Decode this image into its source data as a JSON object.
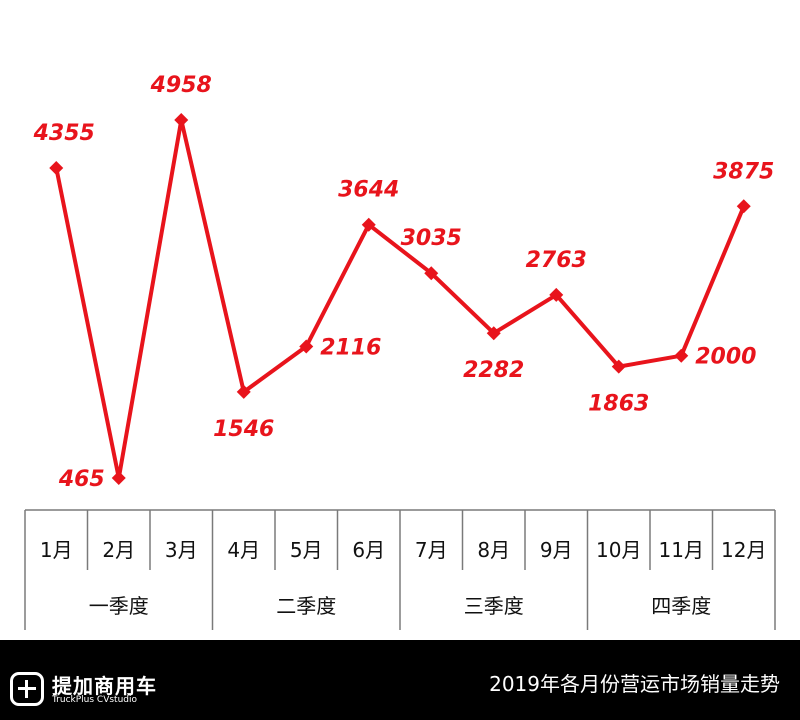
{
  "chart_data": {
    "type": "line",
    "categories": [
      "1月",
      "2月",
      "3月",
      "4月",
      "5月",
      "6月",
      "7月",
      "8月",
      "9月",
      "10月",
      "11月",
      "12月"
    ],
    "values": [
      4355,
      465,
      4958,
      1546,
      2116,
      3644,
      3035,
      2282,
      2763,
      1863,
      2000,
      3875
    ],
    "quarters": [
      "一季度",
      "二季度",
      "三季度",
      "四季度"
    ],
    "label_positions": [
      "above",
      "left",
      "above",
      "below",
      "right",
      "above",
      "above",
      "below",
      "above",
      "below",
      "right",
      "above"
    ],
    "title": "2019年各月份营运市场销量走势",
    "line_color": "#e8141c",
    "marker": "diamond",
    "grid": false,
    "legend": "none"
  },
  "footer": {
    "brand": "提加商用车",
    "brand_sub": "TruckPlus CVstudio",
    "title": "2019年各月份营运市场销量走势"
  }
}
